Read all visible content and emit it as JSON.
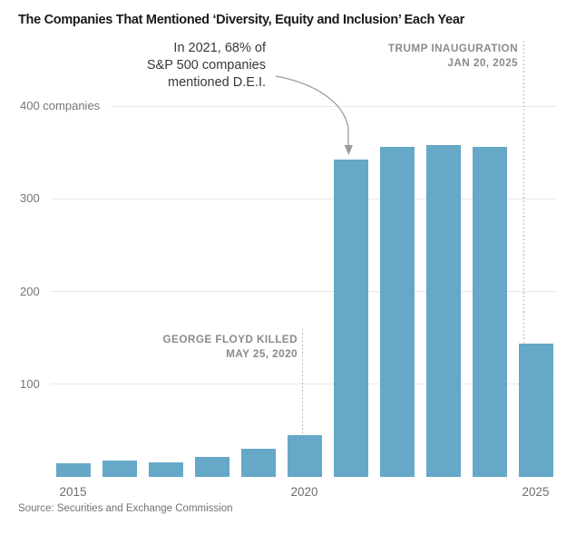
{
  "title": "The Companies That Mentioned ‘Diversity, Equity and Inclusion’ Each Year",
  "source": "Source: Securities and Exchange Commission",
  "chart_data": {
    "type": "bar",
    "title": "The Companies That Mentioned ‘Diversity, Equity and Inclusion’ Each Year",
    "categories": [
      2015,
      2016,
      2017,
      2018,
      2019,
      2020,
      2021,
      2022,
      2023,
      2024,
      2025
    ],
    "values": [
      15,
      18,
      16,
      22,
      30,
      45,
      342,
      356,
      358,
      356,
      144
    ],
    "xlabel": "",
    "ylabel": "companies",
    "ylim": [
      0,
      400
    ],
    "grid": "horizontal",
    "legend_position": "none",
    "bar_color": "#65a8c8",
    "yticks": [
      {
        "value": 100,
        "label": "100"
      },
      {
        "value": 200,
        "label": "200"
      },
      {
        "value": 300,
        "label": "300"
      },
      {
        "value": 400,
        "label": "400 companies"
      }
    ],
    "xticks": [
      {
        "year": 2015,
        "label": "2015"
      },
      {
        "year": 2020,
        "label": "2020"
      },
      {
        "year": 2025,
        "label": "2025"
      }
    ],
    "annotations": {
      "dei": {
        "lines": [
          "In 2021, 68% of",
          "S&P 500 companies",
          "mentioned D.E.I."
        ],
        "target_year": 2021
      },
      "floyd": {
        "lines": [
          "GEORGE FLOYD KILLED",
          "MAY 25, 2020"
        ],
        "year": 2020
      },
      "trump": {
        "lines": [
          "TRUMP INAUGURATION",
          "JAN 20, 2025"
        ],
        "year": 2025
      }
    }
  }
}
